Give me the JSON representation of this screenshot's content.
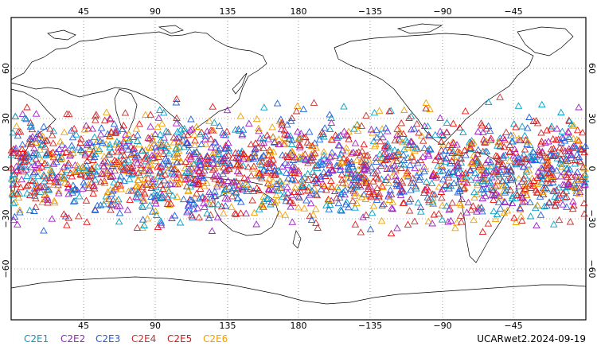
{
  "map": {
    "projection": "equirectangular",
    "lon_range": [
      0,
      360
    ],
    "lat_range": [
      -90,
      90
    ],
    "grid": "dotted",
    "lon_tick_labels": [
      "45",
      "90",
      "135",
      "180",
      "−135",
      "−90",
      "−45"
    ],
    "lat_tick_labels_left": [
      "60",
      "30",
      "0",
      "−30",
      "−60"
    ],
    "lat_tick_labels_right": [
      "60",
      "30",
      "0",
      "−30",
      "−60"
    ],
    "coverage_lat": [
      -45,
      45
    ],
    "marker": "triangle-outline"
  },
  "legend": {
    "placement": "bottom-left",
    "items": [
      {
        "label": "C2E1",
        "color": "#00a0c8"
      },
      {
        "label": "C2E2",
        "color": "#a020c8"
      },
      {
        "label": "C2E3",
        "color": "#2060e0"
      },
      {
        "label": "C2E4",
        "color": "#c83030"
      },
      {
        "label": "C2E5",
        "color": "#ee1010"
      },
      {
        "label": "C2E6",
        "color": "#f0a000"
      }
    ]
  },
  "source_label": "UCARwet2.2024-09-19"
}
